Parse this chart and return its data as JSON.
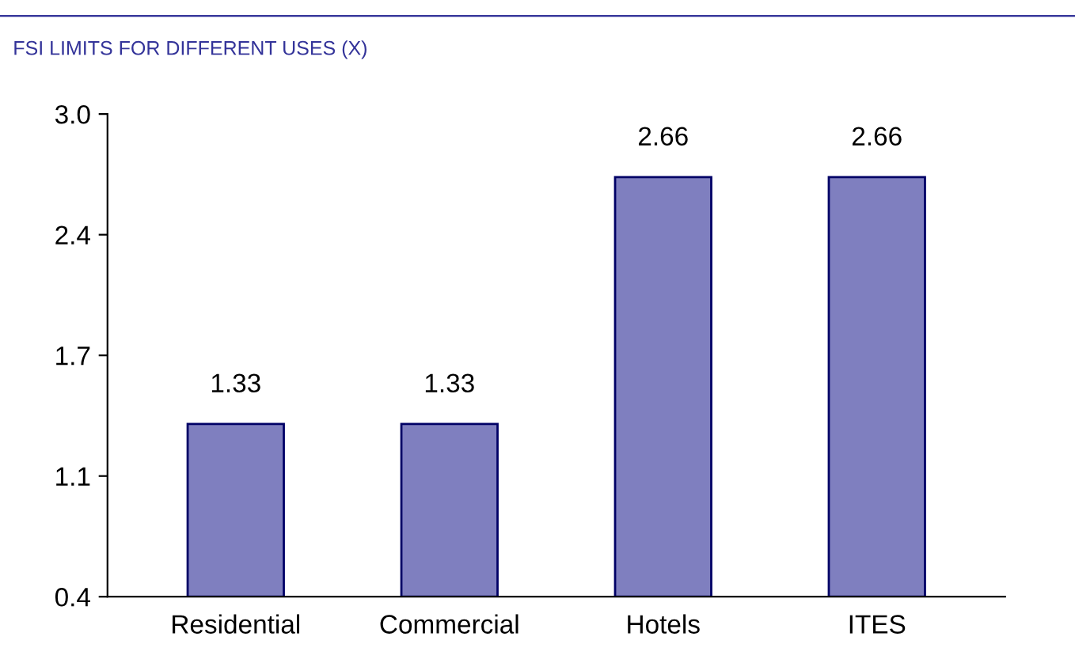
{
  "chart_data": {
    "type": "bar",
    "title": "FSI LIMITS FOR DIFFERENT USES (X)",
    "categories": [
      "Residential",
      "Commercial",
      "Hotels",
      "ITES"
    ],
    "values": [
      1.33,
      1.33,
      2.66,
      2.66
    ],
    "color": "#7f7fbf",
    "ylim": [
      0.4,
      3.0
    ],
    "yticks": [
      0.4,
      {
        "value": 1.05,
        "label": "1.1"
      },
      1.7,
      {
        "value": 2.35,
        "label": "2.4"
      },
      {
        "value": 3,
        "label": "3.0"
      }
    ],
    "data_labels": true,
    "grid": false,
    "legend": false
  }
}
